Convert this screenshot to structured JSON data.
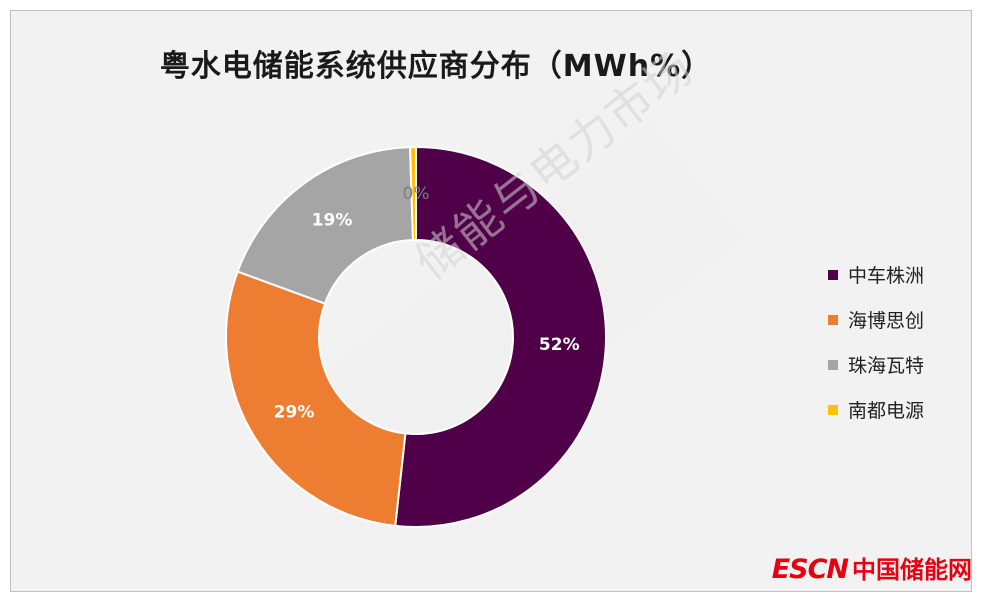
{
  "chart_data": {
    "type": "pie",
    "title": "粤水电储能系统供应商分布（MWh%）",
    "series": [
      {
        "name": "中车株洲",
        "value": 52,
        "label": "52%",
        "color": "#4f0048"
      },
      {
        "name": "海博思创",
        "value": 29,
        "label": "29%",
        "color": "#ed7d31"
      },
      {
        "name": "珠海瓦特",
        "value": 19,
        "label": "19%",
        "color": "#a5a5a5"
      },
      {
        "name": "南都电源",
        "value": 0.5,
        "label": "0%",
        "color": "#ffc000"
      }
    ],
    "legend_position": "right"
  },
  "watermark": {
    "text": "储能与电力市场"
  },
  "logo": {
    "brand": "ESCN",
    "name": "中国储能网"
  }
}
